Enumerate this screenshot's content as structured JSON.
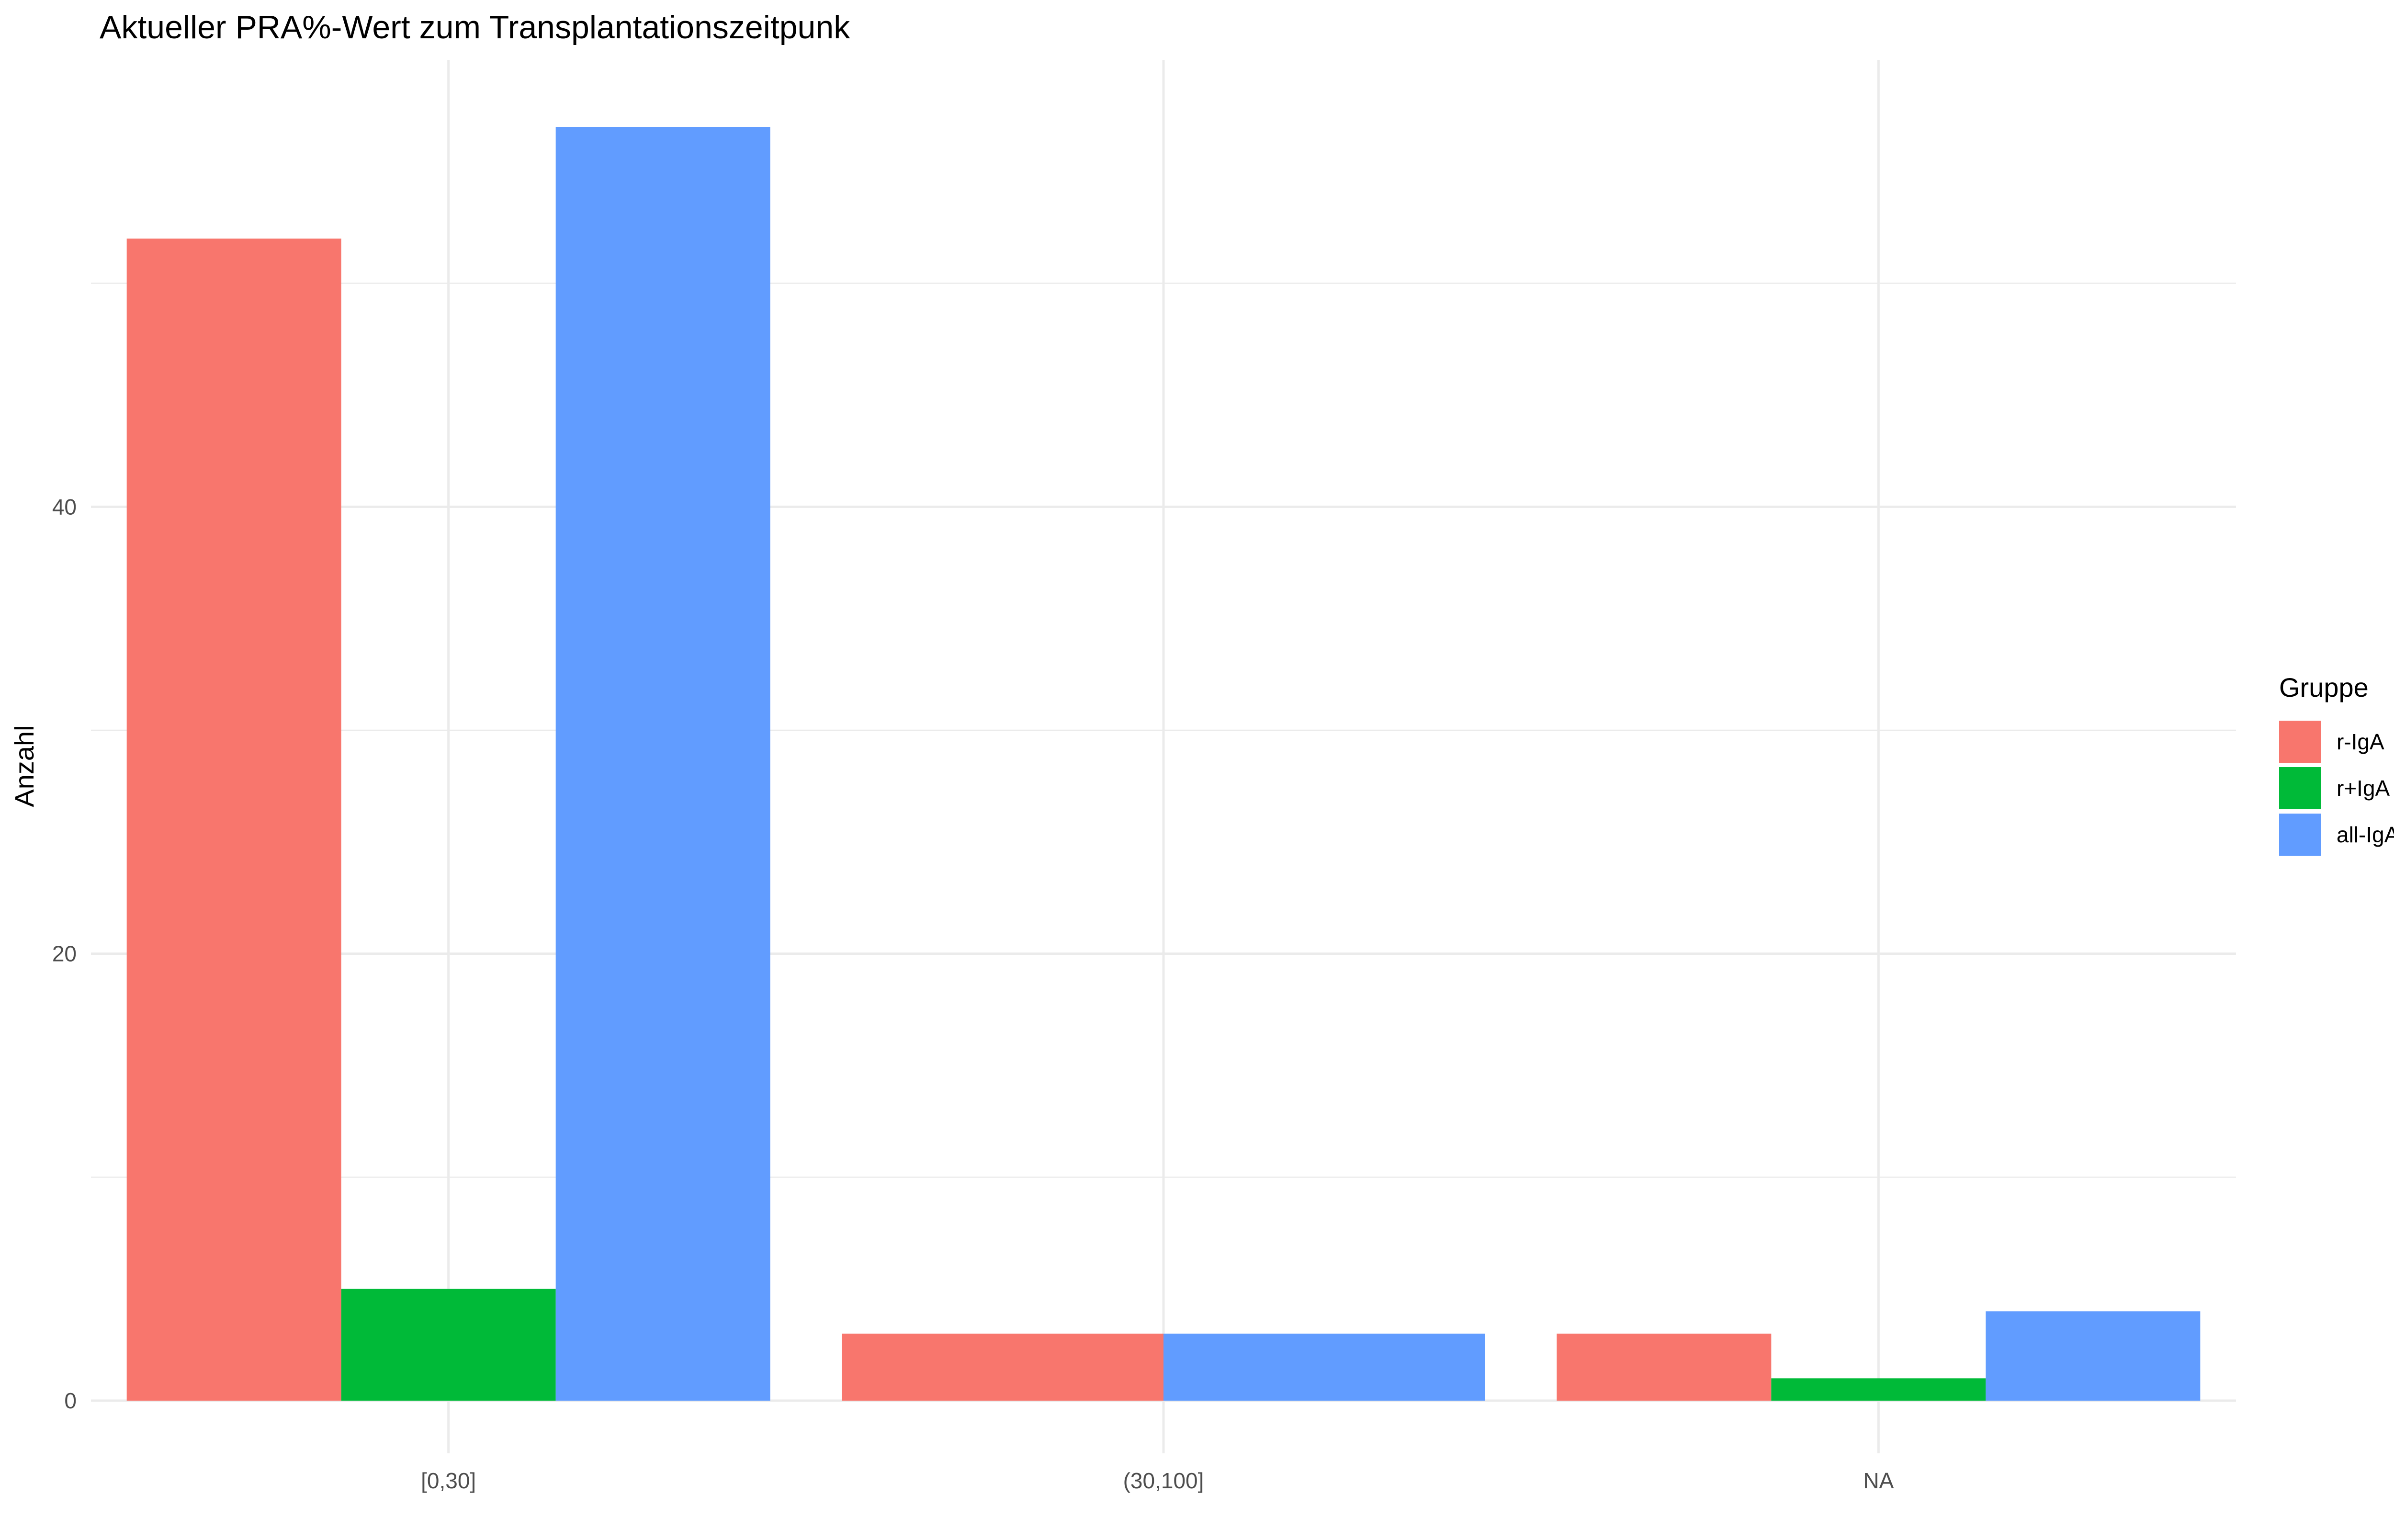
{
  "chart_data": {
    "type": "bar",
    "title": "Aktueller PRA%-Wert zum Transplantationszeitpunk",
    "xlabel": "",
    "ylabel": "Anzahl",
    "categories": [
      "[0,30]",
      "(30,100]",
      "NA"
    ],
    "series": [
      {
        "name": "r-IgA",
        "color": "#F8766D",
        "values": [
          52,
          3,
          3
        ]
      },
      {
        "name": "r+IgA",
        "color": "#00BA38",
        "values": [
          5,
          0,
          1
        ]
      },
      {
        "name": "all-IgA",
        "color": "#619CFF",
        "values": [
          57,
          3,
          4
        ]
      }
    ],
    "ylim": [
      0,
      60
    ],
    "yticks": [
      0,
      20,
      40
    ],
    "grid": true,
    "legend": {
      "title": "Gruppe",
      "position": "right"
    }
  }
}
